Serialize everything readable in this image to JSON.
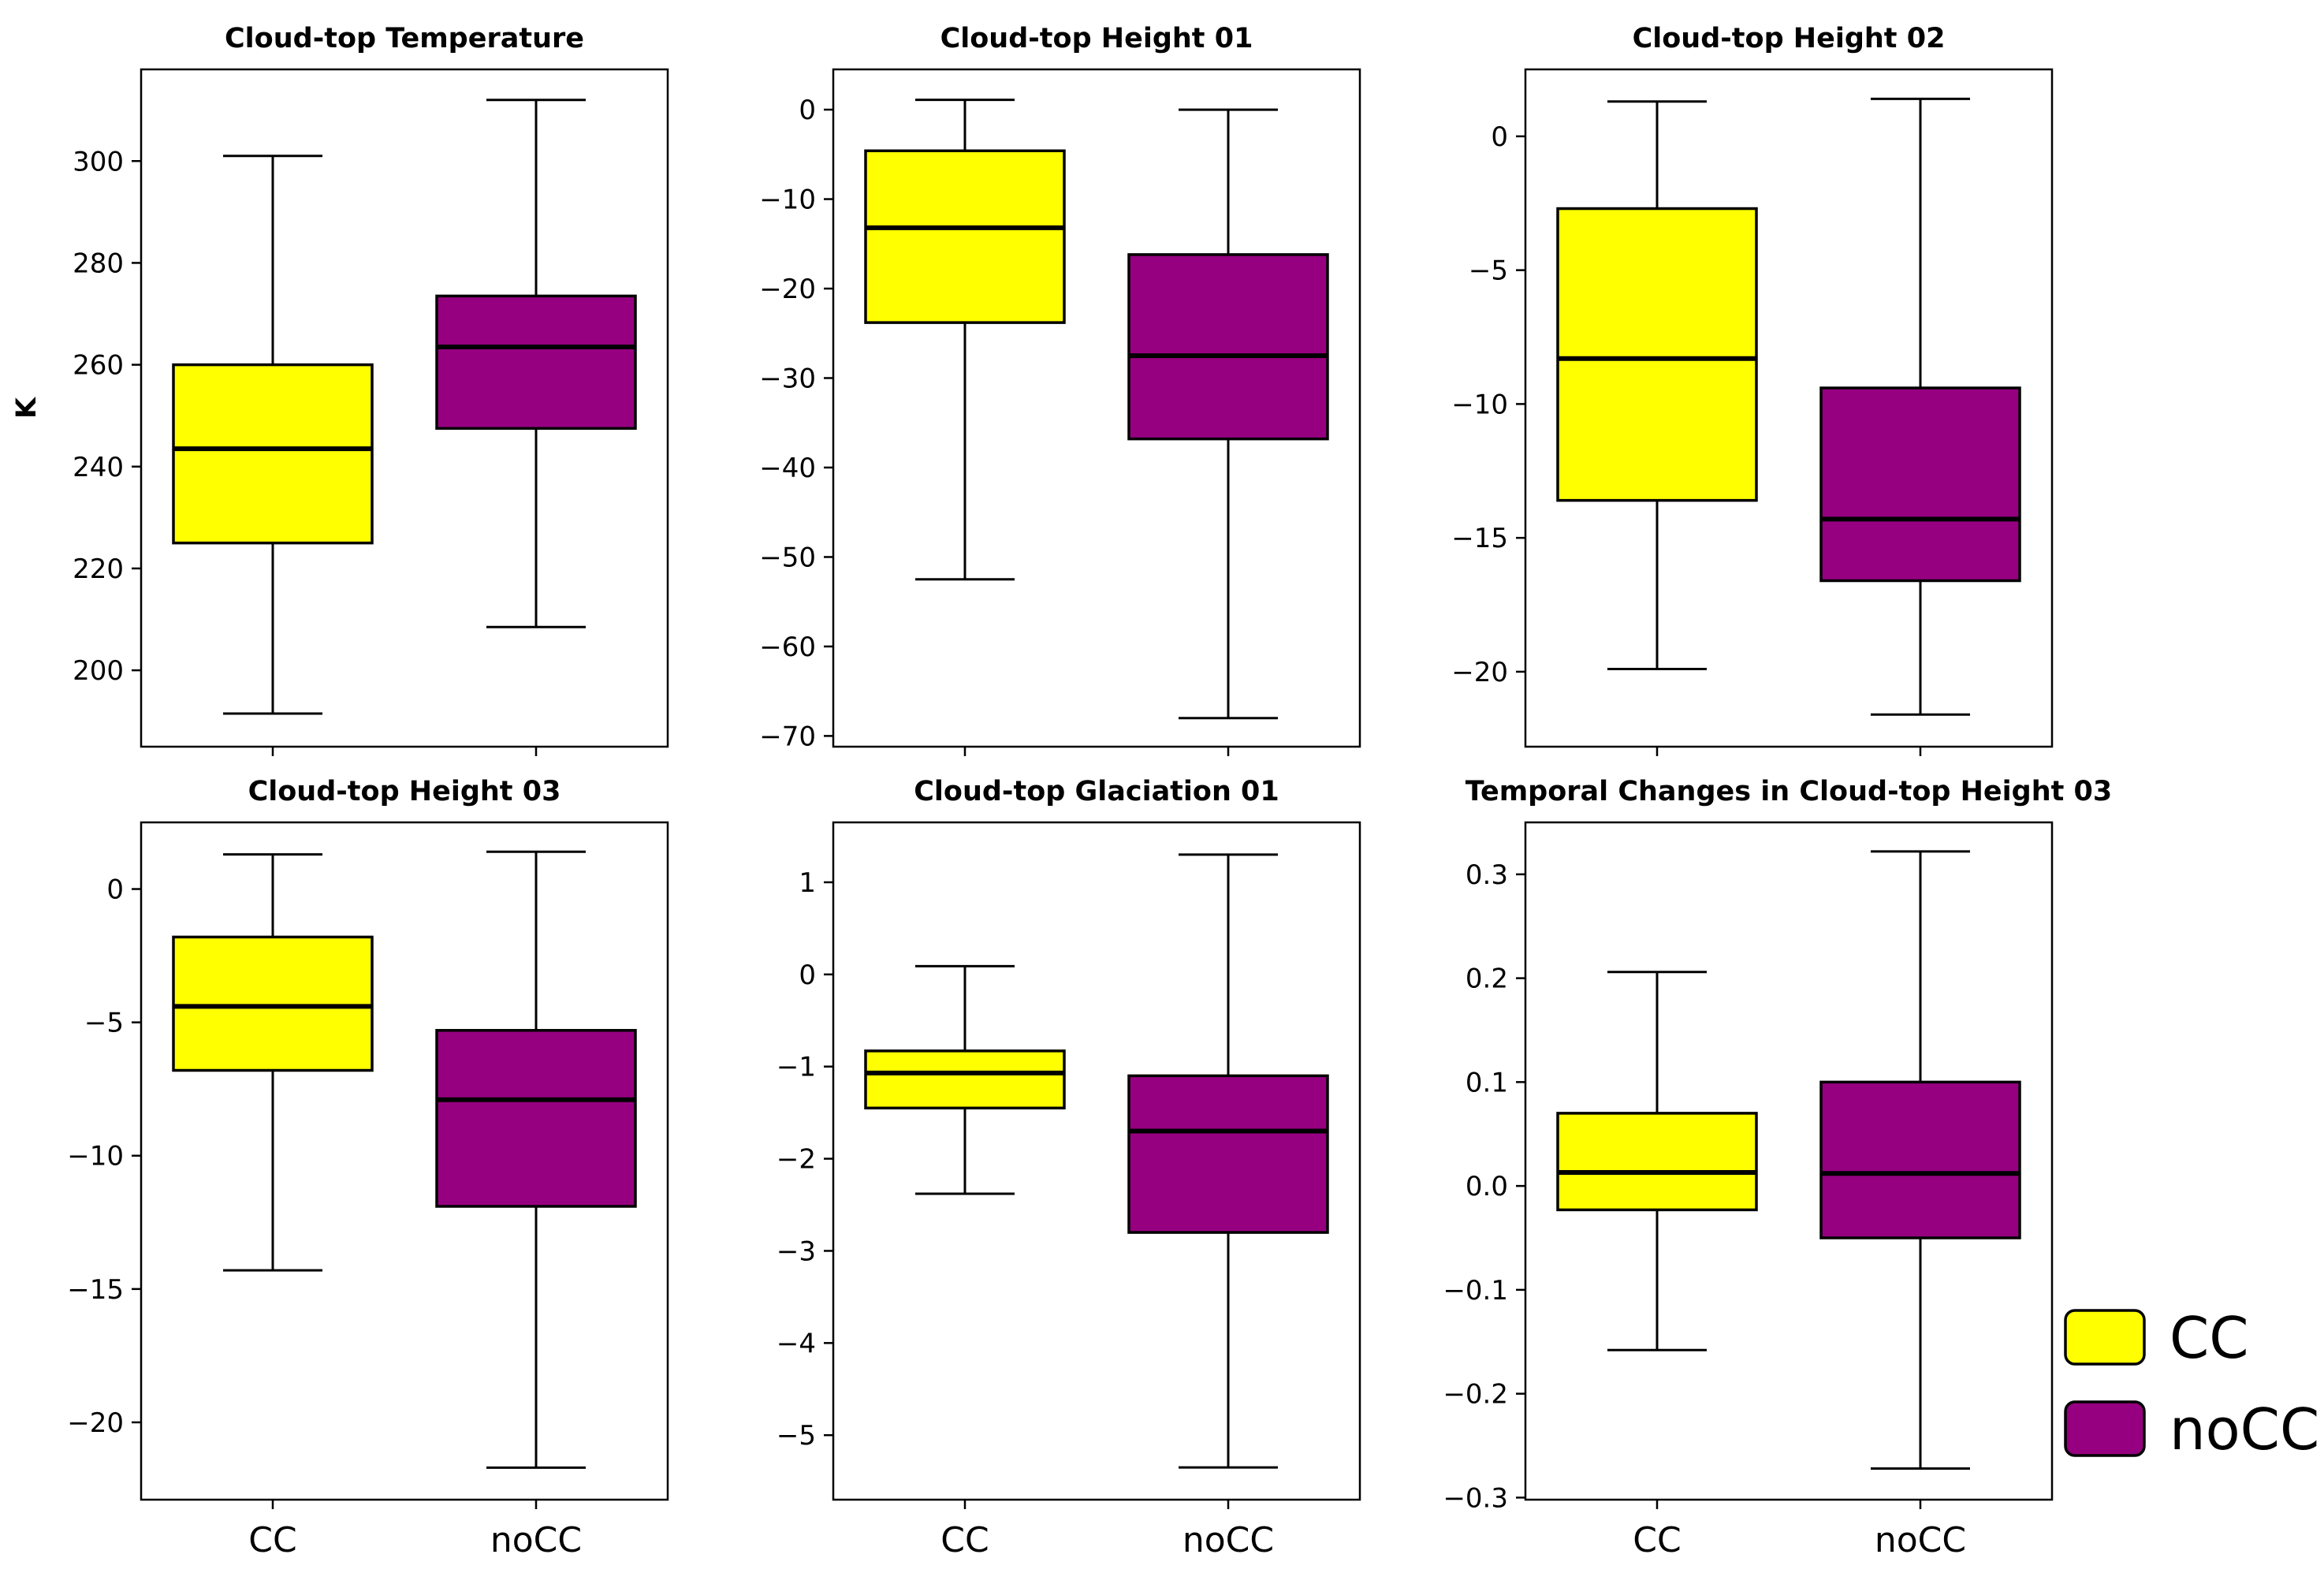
{
  "colors": {
    "cc": "#ffff00",
    "nocc": "#960080",
    "stroke": "#000000"
  },
  "legend": [
    {
      "key": "cc",
      "label": "CC"
    },
    {
      "key": "nocc",
      "label": "noCC"
    }
  ],
  "chart_data": [
    {
      "type": "box",
      "title": "Cloud-top Temperature",
      "ylabel": "K",
      "categories": [
        "CC",
        "noCC"
      ],
      "show_category_labels": false,
      "ylim": [
        185,
        318
      ],
      "yticks": [
        200,
        220,
        240,
        260,
        280,
        300
      ],
      "ytick_labels": [
        "200",
        "220",
        "240",
        "260",
        "280",
        "300"
      ],
      "boxes": [
        {
          "key": "cc",
          "whislo": 191.5,
          "q1": 225,
          "med": 243.5,
          "q3": 260,
          "whishi": 301
        },
        {
          "key": "nocc",
          "whislo": 208.5,
          "q1": 247.5,
          "med": 263.5,
          "q3": 273.5,
          "whishi": 312
        }
      ]
    },
    {
      "type": "box",
      "title": "Cloud-top Height 01",
      "ylabel": "",
      "categories": [
        "CC",
        "noCC"
      ],
      "show_category_labels": false,
      "ylim": [
        -71.2,
        4.5
      ],
      "yticks": [
        -70,
        -60,
        -50,
        -40,
        -30,
        -20,
        -10,
        0
      ],
      "ytick_labels": [
        "−70",
        "−60",
        "−50",
        "−40",
        "−30",
        "−20",
        "−10",
        "0"
      ],
      "boxes": [
        {
          "key": "cc",
          "whislo": -52.5,
          "q1": -23.8,
          "med": -13.2,
          "q3": -4.6,
          "whishi": 1.1
        },
        {
          "key": "nocc",
          "whislo": -68,
          "q1": -36.8,
          "med": -27.5,
          "q3": -16.2,
          "whishi": 0
        }
      ]
    },
    {
      "type": "box",
      "title": "Cloud-top Height 02",
      "ylabel": "",
      "categories": [
        "CC",
        "noCC"
      ],
      "show_category_labels": false,
      "ylim": [
        -22.8,
        2.5
      ],
      "yticks": [
        -20,
        -15,
        -10,
        -5,
        0
      ],
      "ytick_labels": [
        "−20",
        "−15",
        "−10",
        "−5",
        "0"
      ],
      "boxes": [
        {
          "key": "cc",
          "whislo": -19.9,
          "q1": -13.6,
          "med": -8.3,
          "q3": -2.7,
          "whishi": 1.3
        },
        {
          "key": "nocc",
          "whislo": -21.6,
          "q1": -16.6,
          "med": -14.3,
          "q3": -9.4,
          "whishi": 1.4
        }
      ]
    },
    {
      "type": "box",
      "title": "Cloud-top Height 03",
      "ylabel": "",
      "categories": [
        "CC",
        "noCC"
      ],
      "show_category_labels": true,
      "ylim": [
        -22.9,
        2.5
      ],
      "yticks": [
        -20,
        -15,
        -10,
        -5,
        0
      ],
      "ytick_labels": [
        "−20",
        "−15",
        "−10",
        "−5",
        "0"
      ],
      "boxes": [
        {
          "key": "cc",
          "whislo": -14.3,
          "q1": -6.8,
          "med": -4.4,
          "q3": -1.8,
          "whishi": 1.3
        },
        {
          "key": "nocc",
          "whislo": -21.7,
          "q1": -11.9,
          "med": -7.9,
          "q3": -5.3,
          "whishi": 1.4
        }
      ]
    },
    {
      "type": "box",
      "title": "Cloud-top Glaciation 01",
      "ylabel": "",
      "categories": [
        "CC",
        "noCC"
      ],
      "show_category_labels": true,
      "ylim": [
        -5.7,
        1.65
      ],
      "yticks": [
        -5,
        -4,
        -3,
        -2,
        -1,
        0,
        1
      ],
      "ytick_labels": [
        "−5",
        "−4",
        "−3",
        "−2",
        "−1",
        "0",
        "1"
      ],
      "boxes": [
        {
          "key": "cc",
          "whislo": -2.38,
          "q1": -1.45,
          "med": -1.07,
          "q3": -0.83,
          "whishi": 0.09
        },
        {
          "key": "nocc",
          "whislo": -5.35,
          "q1": -2.8,
          "med": -1.7,
          "q3": -1.1,
          "whishi": 1.3
        }
      ]
    },
    {
      "type": "box",
      "title": "Temporal Changes in Cloud-top Height 03",
      "ylabel": "",
      "categories": [
        "CC",
        "noCC"
      ],
      "show_category_labels": true,
      "ylim": [
        -0.302,
        0.35
      ],
      "yticks": [
        -0.3,
        -0.2,
        -0.1,
        0.0,
        0.1,
        0.2,
        0.3
      ],
      "ytick_labels": [
        "−0.3",
        "−0.2",
        "−0.1",
        "0.0",
        "0.1",
        "0.2",
        "0.3"
      ],
      "boxes": [
        {
          "key": "cc",
          "whislo": -0.158,
          "q1": -0.023,
          "med": 0.013,
          "q3": 0.07,
          "whishi": 0.206
        },
        {
          "key": "nocc",
          "whislo": -0.272,
          "q1": -0.05,
          "med": 0.012,
          "q3": 0.1,
          "whishi": 0.322
        }
      ]
    }
  ]
}
